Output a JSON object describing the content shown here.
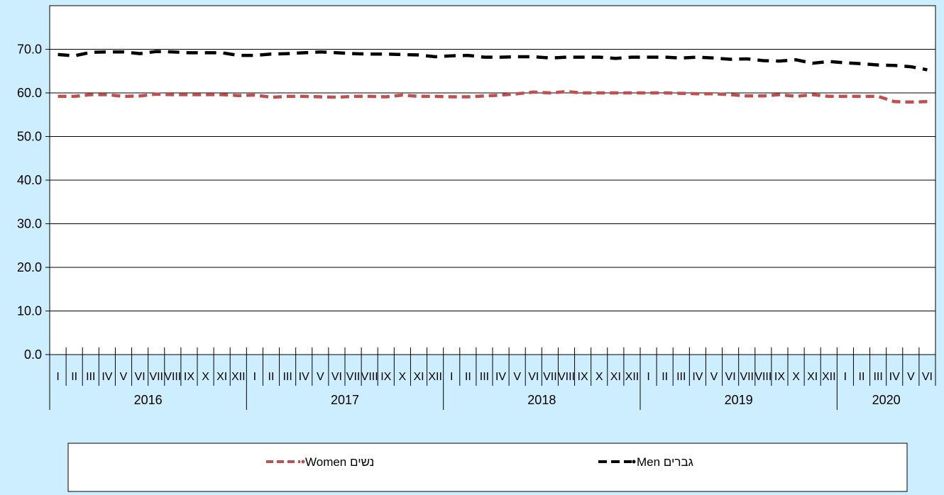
{
  "chart_data": {
    "type": "line",
    "title": "",
    "xlabel": "",
    "ylabel": "",
    "ylim": [
      0,
      80
    ],
    "yticks": [
      "0.0",
      "10.0",
      "20.0",
      "30.0",
      "40.0",
      "50.0",
      "60.0",
      "70.0"
    ],
    "grid": true,
    "legend_position": "bottom",
    "years": [
      {
        "label": "2016",
        "months": 12
      },
      {
        "label": "2017",
        "months": 12
      },
      {
        "label": "2018",
        "months": 12
      },
      {
        "label": "2019",
        "months": 12
      },
      {
        "label": "2020",
        "months": 6
      }
    ],
    "month_labels": [
      "I",
      "II",
      "III",
      "IV",
      "V",
      "VI",
      "VII",
      "VIII",
      "IX",
      "X",
      "XI",
      "XII"
    ],
    "series": [
      {
        "name": "Men  גברים",
        "color": "#000000",
        "values": [
          68.8,
          68.5,
          69.3,
          69.4,
          69.4,
          69.0,
          69.5,
          69.4,
          69.2,
          69.2,
          69.2,
          68.6,
          68.6,
          68.9,
          69.0,
          69.2,
          69.4,
          69.2,
          69.0,
          68.9,
          68.9,
          68.8,
          68.7,
          68.3,
          68.5,
          68.6,
          68.2,
          68.2,
          68.3,
          68.3,
          68.0,
          68.2,
          68.2,
          68.2,
          67.9,
          68.2,
          68.2,
          68.2,
          68.0,
          68.2,
          68.0,
          67.7,
          67.8,
          67.4,
          67.3,
          67.6,
          66.8,
          67.2,
          66.9,
          66.7,
          66.4,
          66.3,
          66.0,
          65.3
        ]
      },
      {
        "name": "Women  נשים",
        "color": "#c0504d",
        "values": [
          59.2,
          59.2,
          59.6,
          59.6,
          59.2,
          59.3,
          59.7,
          59.6,
          59.6,
          59.6,
          59.6,
          59.4,
          59.5,
          59.0,
          59.2,
          59.2,
          59.1,
          59.0,
          59.2,
          59.2,
          59.1,
          59.5,
          59.2,
          59.2,
          59.1,
          59.1,
          59.3,
          59.5,
          59.8,
          60.2,
          60.0,
          60.3,
          60.0,
          60.0,
          60.0,
          60.0,
          60.0,
          60.0,
          59.9,
          59.8,
          59.8,
          59.6,
          59.3,
          59.3,
          59.6,
          59.2,
          59.6,
          59.2,
          59.2,
          59.2,
          59.2,
          58.0,
          57.9,
          58.0
        ]
      }
    ]
  },
  "colors": {
    "background": "#cceeff",
    "plot_background": "#ffffff"
  }
}
